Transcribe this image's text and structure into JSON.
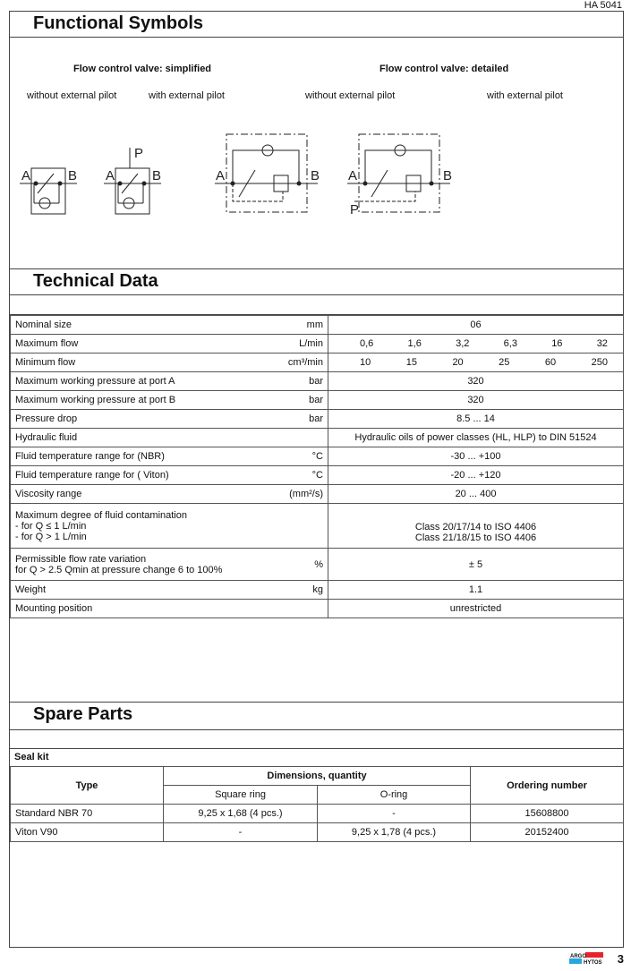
{
  "doc_id": "HA 5041",
  "page_number": "3",
  "logo": "ARGO HYTOS",
  "functional_symbols": {
    "title": "Functional Symbols",
    "simplified_heading": "Flow control valve: simplified",
    "detailed_heading": "Flow control valve: detailed",
    "without_pilot": "without external pilot",
    "with_pilot": "with external pilot",
    "port_a": "A",
    "port_b": "B",
    "port_p": "P"
  },
  "technical_data": {
    "title": "Technical Data",
    "rows": [
      {
        "label": "Nominal size",
        "unit": "mm",
        "value": "06"
      },
      {
        "label": "Maximum flow",
        "unit": "L/min",
        "values": [
          "0,6",
          "1,6",
          "3,2",
          "6,3",
          "16",
          "32"
        ]
      },
      {
        "label": "Minimum flow",
        "unit": "cm³/min",
        "values": [
          "10",
          "15",
          "20",
          "25",
          "60",
          "250"
        ]
      },
      {
        "label": "Maximum working pressure at port A",
        "unit": "bar",
        "value": "320"
      },
      {
        "label": "Maximum working pressure at port B",
        "unit": "bar",
        "value": "320"
      },
      {
        "label": "Pressure drop",
        "unit": "bar",
        "value": "8.5 ... 14"
      },
      {
        "label": "Hydraulic fluid",
        "unit": "",
        "value": "Hydraulic oils of power classes (HL, HLP) to DIN 51524"
      },
      {
        "label": "Fluid temperature range for (NBR)",
        "unit": "°C",
        "value": "-30 ... +100"
      },
      {
        "label": "Fluid temperature range for ( Viton)",
        "unit": "°C",
        "value": "-20 ... +120"
      },
      {
        "label": "Viscosity range",
        "unit": "(mm²/s)",
        "value": "20 ... 400"
      },
      {
        "label": "Maximum degree of fluid contamination",
        "label2": "- for Q  ≤  1 L/min",
        "label3": "- for Q > 1 L/min",
        "unit": "",
        "value": "Class 20/17/14 to ISO 4406",
        "value2": "Class 21/18/15 to ISO 4406"
      },
      {
        "label": "Permissible flow rate variation",
        "label2": "for Q > 2.5 Qmin at pressure change 6 to 100%",
        "unit": "%",
        "value": "± 5"
      },
      {
        "label": "Weight",
        "unit": "kg",
        "value": "1.1"
      },
      {
        "label": "Mounting position",
        "unit": "",
        "value": "unrestricted"
      }
    ]
  },
  "spare_parts": {
    "title": "Spare Parts",
    "subtitle": "Seal kit",
    "headers": {
      "type": "Type",
      "dimensions": "Dimensions, quantity",
      "square_ring": "Square ring",
      "o_ring": "O-ring",
      "ordering": "Ordering number"
    },
    "rows": [
      {
        "type": "Standard NBR 70",
        "square": "9,25 x 1,68 (4 pcs.)",
        "oring": "-",
        "order": "15608800"
      },
      {
        "type": "Viton V90",
        "square": "-",
        "oring": "9,25 x 1,78 (4 pcs.)",
        "order": "20152400"
      }
    ]
  }
}
